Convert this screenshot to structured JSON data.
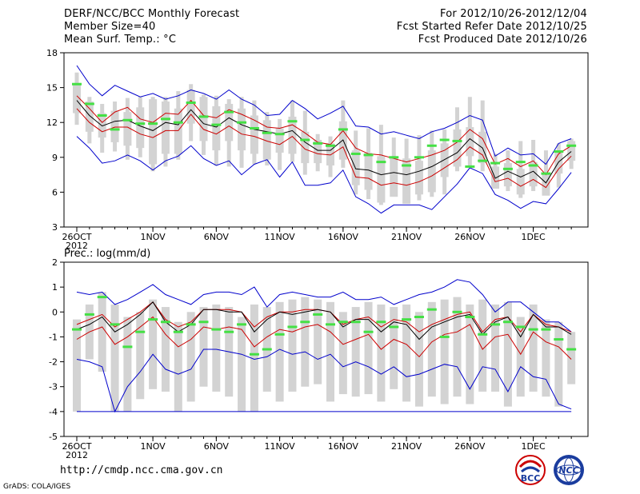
{
  "header": {
    "title": "DERF/NCC/BCC Monthly Forecast",
    "member_size": "Member Size=40",
    "variable": "Mean Surf. Temp.: °C",
    "period": "For 2012/10/26-2012/12/04",
    "start_date": "Fcst Started Refer Date 2012/10/25",
    "produced_date": "Fcst Produced Date 2012/10/26"
  },
  "footer": {
    "url": "http://cmdp.ncc.cma.gov.cn",
    "credit": "GrADS: COLA/IGES",
    "logo_bcc": "BCC",
    "logo_ncc": "NCC"
  },
  "colors": {
    "box": "#d3d3d3",
    "mean": "#000000",
    "spread": "#cc0000",
    "extreme": "#0000cc",
    "marker": "#44e044"
  },
  "chart_data": [
    {
      "type": "box-ensemble",
      "title": "Mean Surf. Temp.: °C",
      "ylim": [
        3,
        18
      ],
      "yticks": [
        "3",
        "6",
        "9",
        "12",
        "15",
        "18"
      ],
      "xticks": [
        {
          "day": 0,
          "label": "26OCT",
          "sub": "2012"
        },
        {
          "day": 6,
          "label": "1NOV"
        },
        {
          "day": 11,
          "label": "6NOV"
        },
        {
          "day": 16,
          "label": "11NOV"
        },
        {
          "day": 21,
          "label": "16NOV"
        },
        {
          "day": 26,
          "label": "21NOV"
        },
        {
          "day": 31,
          "label": "26NOV"
        },
        {
          "day": 36,
          "label": "1DEC"
        }
      ],
      "series": {
        "max": [
          16.9,
          15.3,
          14.3,
          15.2,
          14.7,
          14.2,
          14.5,
          14.0,
          14.3,
          14.8,
          14.5,
          14.0,
          14.8,
          14.0,
          13.5,
          12.6,
          12.7,
          13.9,
          13.2,
          12.3,
          12.8,
          13.4,
          11.7,
          11.6,
          11.0,
          11.2,
          10.9,
          10.6,
          11.2,
          11.5,
          12.0,
          12.6,
          12.2,
          9.1,
          9.8,
          9.2,
          9.3,
          8.4,
          10.2,
          10.6
        ],
        "upper": [
          14.3,
          13.2,
          12.0,
          12.9,
          13.3,
          12.3,
          12.0,
          12.8,
          12.7,
          13.9,
          12.6,
          12.4,
          13.1,
          12.7,
          12.2,
          11.6,
          11.5,
          11.8,
          11.1,
          10.3,
          10.1,
          11.3,
          9.8,
          9.3,
          9.2,
          8.9,
          8.6,
          8.9,
          9.2,
          9.6,
          10.3,
          11.4,
          10.6,
          8.4,
          8.9,
          8.2,
          8.7,
          7.5,
          9.3,
          10.0
        ],
        "mean": [
          13.9,
          12.6,
          11.7,
          12.1,
          12.2,
          11.7,
          11.3,
          12.0,
          11.8,
          13.1,
          11.9,
          11.6,
          12.4,
          11.8,
          11.4,
          11.2,
          11.0,
          11.3,
          10.3,
          9.6,
          9.6,
          10.5,
          8.0,
          7.9,
          7.5,
          7.7,
          7.5,
          7.8,
          8.2,
          8.8,
          9.4,
          10.6,
          9.8,
          7.2,
          7.8,
          7.3,
          7.8,
          6.8,
          8.6,
          9.5
        ],
        "lower": [
          13.2,
          12.0,
          11.2,
          11.6,
          11.6,
          11.0,
          10.7,
          11.3,
          11.3,
          12.7,
          11.4,
          11.0,
          11.7,
          11.0,
          10.8,
          10.4,
          10.1,
          10.8,
          9.7,
          9.3,
          9.2,
          9.9,
          7.3,
          7.2,
          6.6,
          6.8,
          6.6,
          6.9,
          7.4,
          8.1,
          8.8,
          9.9,
          9.2,
          6.9,
          7.2,
          6.5,
          7.1,
          6.4,
          8.0,
          9.1
        ],
        "min": [
          10.8,
          9.8,
          8.5,
          8.7,
          9.2,
          8.7,
          7.9,
          8.7,
          9.1,
          10.0,
          8.9,
          8.3,
          8.7,
          7.5,
          8.4,
          8.8,
          7.3,
          8.6,
          6.6,
          6.6,
          6.8,
          7.9,
          5.6,
          5.0,
          4.2,
          4.9,
          4.9,
          4.9,
          4.5,
          5.6,
          6.7,
          8.1,
          7.6,
          5.8,
          5.3,
          4.6,
          5.2,
          5.0,
          6.3,
          7.7
        ],
        "box_top": [
          15.4,
          13.8,
          12.8,
          13.0,
          12.9,
          13.3,
          14.0,
          13.8,
          13.2,
          14.8,
          14.2,
          13.4,
          13.6,
          13.2,
          12.6,
          12.2,
          11.5,
          12.5,
          11.2,
          10.5,
          10.2,
          12.1,
          9.6,
          9.4,
          9.1,
          9.0,
          8.9,
          8.7,
          9.6,
          10.2,
          11.4,
          11.6,
          11.2,
          8.2,
          8.5,
          8.0,
          8.6,
          7.6,
          9.5,
          10.4
        ],
        "box_bot": [
          12.8,
          11.2,
          10.7,
          10.3,
          10.0,
          9.8,
          8.4,
          9.3,
          9.3,
          11.9,
          10.4,
          9.6,
          10.4,
          9.6,
          9.3,
          8.8,
          9.4,
          9.3,
          8.5,
          8.5,
          8.3,
          8.8,
          6.6,
          6.2,
          5.1,
          5.6,
          5.0,
          5.8,
          6.0,
          7.3,
          8.2,
          9.1,
          8.5,
          6.3,
          6.5,
          5.8,
          6.5,
          5.7,
          7.6,
          8.7
        ],
        "whisker_top": [
          16.3,
          14.2,
          13.6,
          13.8,
          14.1,
          14.2,
          14.2,
          14.2,
          14.7,
          15.3,
          14.4,
          14.3,
          14.0,
          14.2,
          13.9,
          12.9,
          12.3,
          13.9,
          13.0,
          11.0,
          10.8,
          13.9,
          11.3,
          11.5,
          11.8,
          10.7,
          10.6,
          10.9,
          11.3,
          11.4,
          13.3,
          14.2,
          13.9,
          9.3,
          9.6,
          10.4,
          10.5,
          9.6,
          10.2,
          10.6
        ],
        "whisker_bot": [
          11.8,
          10.2,
          9.4,
          9.5,
          8.8,
          9.0,
          7.8,
          8.2,
          8.8,
          10.4,
          9.2,
          8.3,
          8.2,
          8.1,
          8.4,
          8.3,
          7.9,
          8.6,
          7.5,
          7.8,
          7.3,
          8.1,
          5.8,
          5.4,
          4.9,
          5.7,
          5.0,
          5.3,
          5.6,
          5.8,
          7.8,
          8.3,
          7.8,
          6.6,
          6.1,
          5.5,
          6.1,
          5.8,
          6.4,
          8.0
        ],
        "marker": [
          15.3,
          13.6,
          12.6,
          11.4,
          12.2,
          11.9,
          11.9,
          12.3,
          12.0,
          13.7,
          12.5,
          11.8,
          12.9,
          12.0,
          11.5,
          11.1,
          11.0,
          12.1,
          10.5,
          10.2,
          10.0,
          11.4,
          9.3,
          9.2,
          8.6,
          9.0,
          8.3,
          9.0,
          10.0,
          10.5,
          10.4,
          8.2,
          8.7,
          8.5,
          8.0,
          8.6,
          8.3,
          7.6,
          9.5,
          10.0
        ]
      }
    },
    {
      "type": "box-ensemble",
      "title": "Prec.: log(mm/d)",
      "ylim": [
        -5,
        2
      ],
      "yticks": [
        "-5",
        "-4",
        "-3",
        "-2",
        "-1",
        "0",
        "1",
        "2"
      ],
      "xticks": [
        {
          "day": 0,
          "label": "26OCT",
          "sub": "2012"
        },
        {
          "day": 6,
          "label": "1NOV"
        },
        {
          "day": 11,
          "label": "6NOV"
        },
        {
          "day": 16,
          "label": "11NOV"
        },
        {
          "day": 21,
          "label": "16NOV"
        },
        {
          "day": 26,
          "label": "21NOV"
        },
        {
          "day": 31,
          "label": "26NOV"
        },
        {
          "day": 36,
          "label": "1DEC"
        }
      ],
      "series": {
        "max": [
          0.8,
          0.7,
          0.8,
          0.3,
          0.5,
          0.8,
          1.1,
          0.7,
          0.5,
          0.3,
          0.7,
          0.8,
          0.8,
          0.7,
          1.0,
          0.2,
          0.7,
          0.8,
          0.7,
          0.6,
          0.6,
          0.8,
          0.5,
          0.5,
          0.6,
          0.3,
          0.5,
          0.7,
          0.8,
          1.0,
          1.3,
          1.2,
          0.7,
          0.0,
          0.4,
          0.4,
          0.0,
          -0.4,
          -0.4,
          -0.8
        ],
        "mean": [
          -0.7,
          -0.5,
          -0.2,
          -0.8,
          -0.5,
          -0.1,
          0.4,
          -0.4,
          -0.8,
          -0.5,
          0.1,
          0.1,
          0.0,
          0.0,
          -0.8,
          -0.3,
          0.0,
          -0.1,
          0.0,
          0.1,
          0.0,
          -0.6,
          -0.3,
          -0.3,
          -0.8,
          -0.4,
          -0.5,
          -1.1,
          -0.6,
          -0.4,
          -0.2,
          -0.1,
          -0.9,
          -0.4,
          -0.2,
          -1.0,
          -0.1,
          -0.6,
          -0.6,
          -0.9
        ],
        "upper": [
          -0.5,
          -0.3,
          -0.1,
          -0.6,
          -0.3,
          0.0,
          0.4,
          -0.3,
          -0.6,
          -0.4,
          0.1,
          0.1,
          0.1,
          0.0,
          -0.6,
          -0.2,
          0.0,
          0.0,
          0.1,
          0.1,
          0.0,
          -0.5,
          -0.3,
          -0.2,
          -0.6,
          -0.3,
          -0.4,
          -0.8,
          -0.5,
          -0.3,
          -0.1,
          0.0,
          -0.8,
          -0.3,
          -0.2,
          -0.8,
          -0.1,
          -0.5,
          -0.6,
          -0.8
        ],
        "lower": [
          -1.1,
          -0.8,
          -0.6,
          -1.3,
          -1.0,
          -0.6,
          -0.2,
          -0.9,
          -1.4,
          -1.1,
          -0.6,
          -0.7,
          -0.6,
          -0.7,
          -1.4,
          -1.0,
          -0.7,
          -0.8,
          -0.6,
          -0.5,
          -0.8,
          -1.3,
          -1.1,
          -0.9,
          -1.5,
          -1.1,
          -1.3,
          -1.8,
          -1.2,
          -0.9,
          -0.8,
          -0.5,
          -1.5,
          -1.0,
          -0.9,
          -1.7,
          -0.8,
          -1.2,
          -1.4,
          -1.9
        ],
        "min": [
          -1.9,
          -2.0,
          -2.2,
          -4.0,
          -3.0,
          -2.4,
          -1.7,
          -2.3,
          -2.5,
          -2.3,
          -1.5,
          -1.5,
          -1.6,
          -1.7,
          -1.9,
          -1.8,
          -1.5,
          -1.7,
          -1.6,
          -1.9,
          -1.7,
          -2.2,
          -2.0,
          -2.2,
          -2.5,
          -2.2,
          -2.6,
          -2.5,
          -2.3,
          -2.1,
          -2.2,
          -3.1,
          -2.2,
          -2.3,
          -3.2,
          -2.2,
          -2.6,
          -2.7,
          -3.7,
          -3.9
        ],
        "floor": -4.0,
        "box_top": [
          -0.3,
          0.3,
          0.8,
          0.3,
          -0.2,
          0.0,
          0.5,
          0.2,
          -0.4,
          0.0,
          0.2,
          0.3,
          0.2,
          -0.2,
          0.3,
          0.2,
          0.4,
          0.5,
          0.6,
          0.5,
          0.4,
          0.0,
          0.2,
          0.4,
          0.3,
          0.2,
          0.3,
          0.0,
          0.4,
          0.5,
          0.6,
          0.3,
          0.5,
          0.3,
          0.4,
          -0.2,
          0.3,
          -0.3,
          -0.4,
          -0.8
        ],
        "box_bot": [
          -4.0,
          -1.9,
          -2.4,
          -4.0,
          -4.0,
          -3.5,
          -3.1,
          -3.2,
          -4.0,
          -3.6,
          -3.0,
          -3.2,
          -3.4,
          -4.0,
          -4.0,
          -3.2,
          -3.6,
          -3.2,
          -3.0,
          -2.9,
          -3.6,
          -3.3,
          -3.4,
          -3.3,
          -3.6,
          -3.1,
          -3.6,
          -3.8,
          -3.4,
          -3.7,
          -3.4,
          -3.7,
          -3.2,
          -3.2,
          -3.8,
          -3.4,
          -3.2,
          -3.4,
          -3.8,
          -2.9
        ],
        "marker": [
          -0.7,
          -0.1,
          0.6,
          -0.5,
          -1.4,
          -0.8,
          -0.3,
          -0.4,
          -0.8,
          -0.5,
          -0.4,
          -0.7,
          -0.8,
          -0.5,
          -1.7,
          -1.5,
          -0.9,
          -0.6,
          -0.4,
          -0.1,
          -0.5,
          -0.4,
          -0.4,
          -0.8,
          -0.4,
          -0.6,
          -0.3,
          -0.2,
          0.1,
          -1.0,
          0.0,
          -0.2,
          -0.9,
          -0.5,
          -0.4,
          -0.6,
          -0.7,
          -0.7,
          -1.1,
          -1.5
        ]
      }
    }
  ]
}
